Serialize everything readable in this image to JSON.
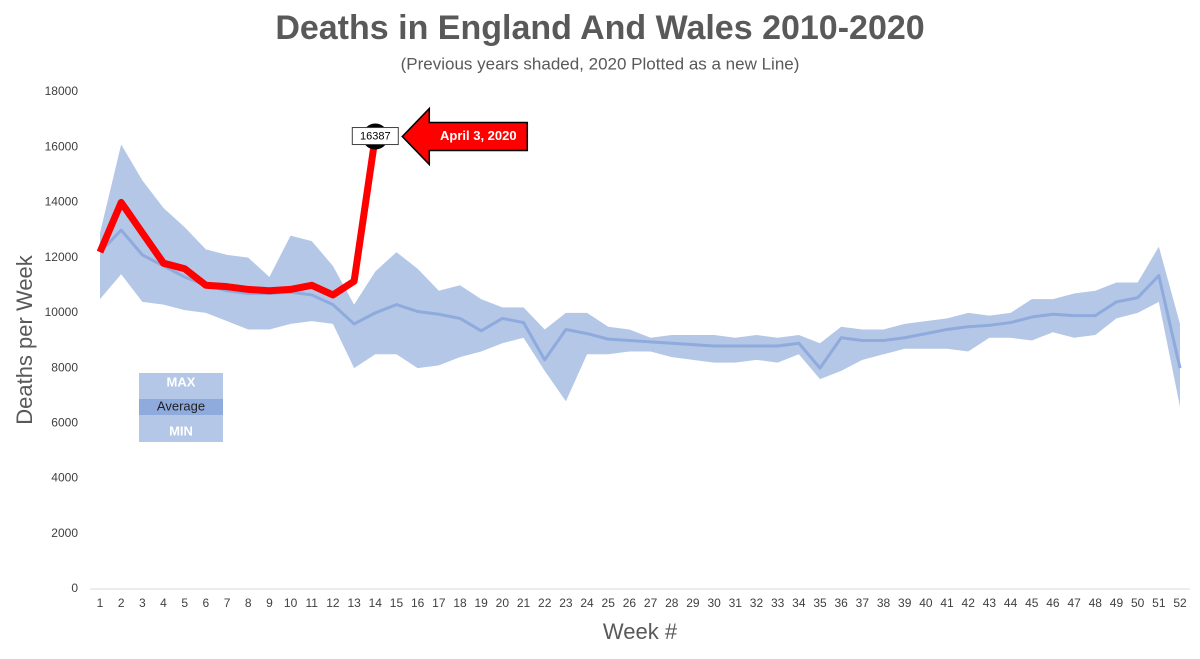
{
  "chart_data": {
    "type": "line",
    "title": "Deaths in England And Wales 2010-2020",
    "subtitle": "(Previous years shaded, 2020 Plotted as a new Line)",
    "y_label": "Deaths per Week",
    "x_label": "Week #",
    "annotation": "April 3, 2020",
    "categories": [
      1,
      2,
      3,
      4,
      5,
      6,
      7,
      8,
      9,
      10,
      11,
      12,
      13,
      14,
      15,
      16,
      17,
      18,
      19,
      20,
      21,
      22,
      23,
      24,
      25,
      26,
      27,
      28,
      29,
      30,
      31,
      32,
      33,
      34,
      35,
      36,
      37,
      38,
      39,
      40,
      41,
      42,
      43,
      44,
      45,
      46,
      47,
      48,
      49,
      50,
      51,
      52
    ],
    "ylim": [
      0,
      18000
    ],
    "yticks": [
      0,
      2000,
      4000,
      6000,
      8000,
      10000,
      12000,
      14000,
      16000,
      18000
    ],
    "band_color": "#b4c7e7",
    "series": [
      {
        "name": "MAX",
        "color": "#b4c7e7",
        "values": [
          12900,
          16100,
          14800,
          13800,
          13100,
          12300,
          12100,
          12000,
          11300,
          12800,
          12600,
          11700,
          10300,
          11500,
          12200,
          11600,
          10800,
          11000,
          10500,
          10200,
          10200,
          9400,
          10000,
          10000,
          9500,
          9400,
          9100,
          9200,
          9200,
          9200,
          9100,
          9200,
          9100,
          9200,
          8900,
          9500,
          9400,
          9400,
          9600,
          9700,
          9800,
          10000,
          9900,
          10000,
          10500,
          10500,
          10700,
          10800,
          11100,
          11100,
          12400,
          9600
        ]
      },
      {
        "name": "Average",
        "color": "#8faadc",
        "values": [
          12200,
          13000,
          12100,
          11700,
          11300,
          11000,
          10800,
          10700,
          10700,
          10750,
          10650,
          10300,
          9600,
          10000,
          10300,
          10050,
          9950,
          9800,
          9350,
          9800,
          9650,
          8300,
          9400,
          9250,
          9050,
          9000,
          8950,
          8900,
          8850,
          8800,
          8800,
          8800,
          8800,
          8900,
          8000,
          9100,
          9000,
          9000,
          9100,
          9250,
          9400,
          9500,
          9550,
          9650,
          9850,
          9950,
          9900,
          9900,
          10400,
          10550,
          11350,
          8000
        ]
      },
      {
        "name": "MIN",
        "color": "#b4c7e7",
        "values": [
          10500,
          11400,
          10400,
          10300,
          10100,
          10000,
          9700,
          9400,
          9400,
          9600,
          9700,
          9600,
          8000,
          8500,
          8500,
          8000,
          8100,
          8400,
          8600,
          8900,
          9100,
          7900,
          6800,
          8500,
          8500,
          8600,
          8600,
          8400,
          8300,
          8200,
          8200,
          8300,
          8200,
          8500,
          7600,
          7900,
          8300,
          8500,
          8700,
          8700,
          8700,
          8600,
          9100,
          9100,
          9000,
          9300,
          9100,
          9200,
          9800,
          10000,
          10400,
          6600
        ]
      }
    ],
    "line_2020": {
      "color": "#ff0000",
      "values": [
        12200,
        14000,
        12900,
        11800,
        11600,
        11000,
        10950,
        10850,
        10800,
        10850,
        11000,
        10650,
        11150,
        16387
      ]
    }
  }
}
